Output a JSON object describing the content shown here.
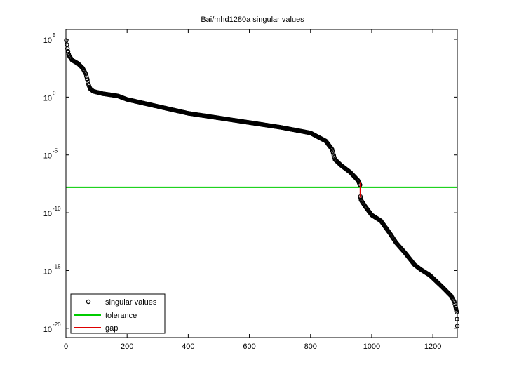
{
  "chart_data": {
    "type": "scatter",
    "title": "Bai/mhd1280a singular values",
    "xlabel": "",
    "ylabel": "",
    "xlim": [
      0,
      1280
    ],
    "ylim_log10": [
      -20.8,
      5.85
    ],
    "yscale": "log",
    "grid": false,
    "legend_position": "lower left",
    "x_ticks": [
      0,
      200,
      400,
      600,
      800,
      1000,
      1200
    ],
    "x_tick_labels": [
      "0",
      "200",
      "400",
      "600",
      "800",
      "1000",
      "1200"
    ],
    "y_ticks_log10": [
      5,
      0,
      -5,
      -10,
      -15,
      -20
    ],
    "y_tick_labels": [
      {
        "base": "10",
        "exp": "5"
      },
      {
        "base": "10",
        "exp": "0"
      },
      {
        "base": "10",
        "exp": "-5"
      },
      {
        "base": "10",
        "exp": "-10"
      },
      {
        "base": "10",
        "exp": "-15"
      },
      {
        "base": "10",
        "exp": "-20"
      }
    ],
    "series": [
      {
        "name": "singular values",
        "style": "black open circles",
        "color": "#000000",
        "points_index_log10sv": [
          [
            1,
            4.9
          ],
          [
            5,
            4.2
          ],
          [
            10,
            3.6
          ],
          [
            20,
            3.2
          ],
          [
            40,
            2.9
          ],
          [
            55,
            2.5
          ],
          [
            65,
            2.0
          ],
          [
            70,
            1.5
          ],
          [
            75,
            1.0
          ],
          [
            80,
            0.7
          ],
          [
            90,
            0.5
          ],
          [
            120,
            0.3
          ],
          [
            170,
            0.1
          ],
          [
            200,
            -0.2
          ],
          [
            300,
            -0.8
          ],
          [
            400,
            -1.4
          ],
          [
            500,
            -1.8
          ],
          [
            600,
            -2.2
          ],
          [
            700,
            -2.6
          ],
          [
            800,
            -3.1
          ],
          [
            850,
            -3.8
          ],
          [
            870,
            -4.5
          ],
          [
            880,
            -5.4
          ],
          [
            900,
            -5.9
          ],
          [
            930,
            -6.5
          ],
          [
            955,
            -7.2
          ],
          [
            962,
            -7.6
          ],
          [
            963,
            -8.6
          ],
          [
            965,
            -8.9
          ],
          [
            980,
            -9.5
          ],
          [
            1000,
            -10.2
          ],
          [
            1030,
            -10.7
          ],
          [
            1060,
            -11.8
          ],
          [
            1080,
            -12.6
          ],
          [
            1110,
            -13.5
          ],
          [
            1140,
            -14.5
          ],
          [
            1160,
            -14.9
          ],
          [
            1190,
            -15.4
          ],
          [
            1230,
            -16.4
          ],
          [
            1260,
            -17.2
          ],
          [
            1270,
            -17.7
          ],
          [
            1275,
            -18.2
          ],
          [
            1278,
            -18.6
          ],
          [
            1280,
            -19.8
          ]
        ]
      },
      {
        "name": "tolerance",
        "style": "horizontal line",
        "color": "#00cc00",
        "value_log10": -7.8
      },
      {
        "name": "gap",
        "style": "vertical line segment",
        "color": "#dd0000",
        "x": 963,
        "from_log10": -7.4,
        "to_log10": -8.7
      }
    ],
    "legend": [
      {
        "label": "singular values",
        "marker": "circle",
        "color": "#000000"
      },
      {
        "label": "tolerance",
        "marker": "line",
        "color": "#00cc00"
      },
      {
        "label": "gap",
        "marker": "line",
        "color": "#dd0000"
      }
    ]
  }
}
